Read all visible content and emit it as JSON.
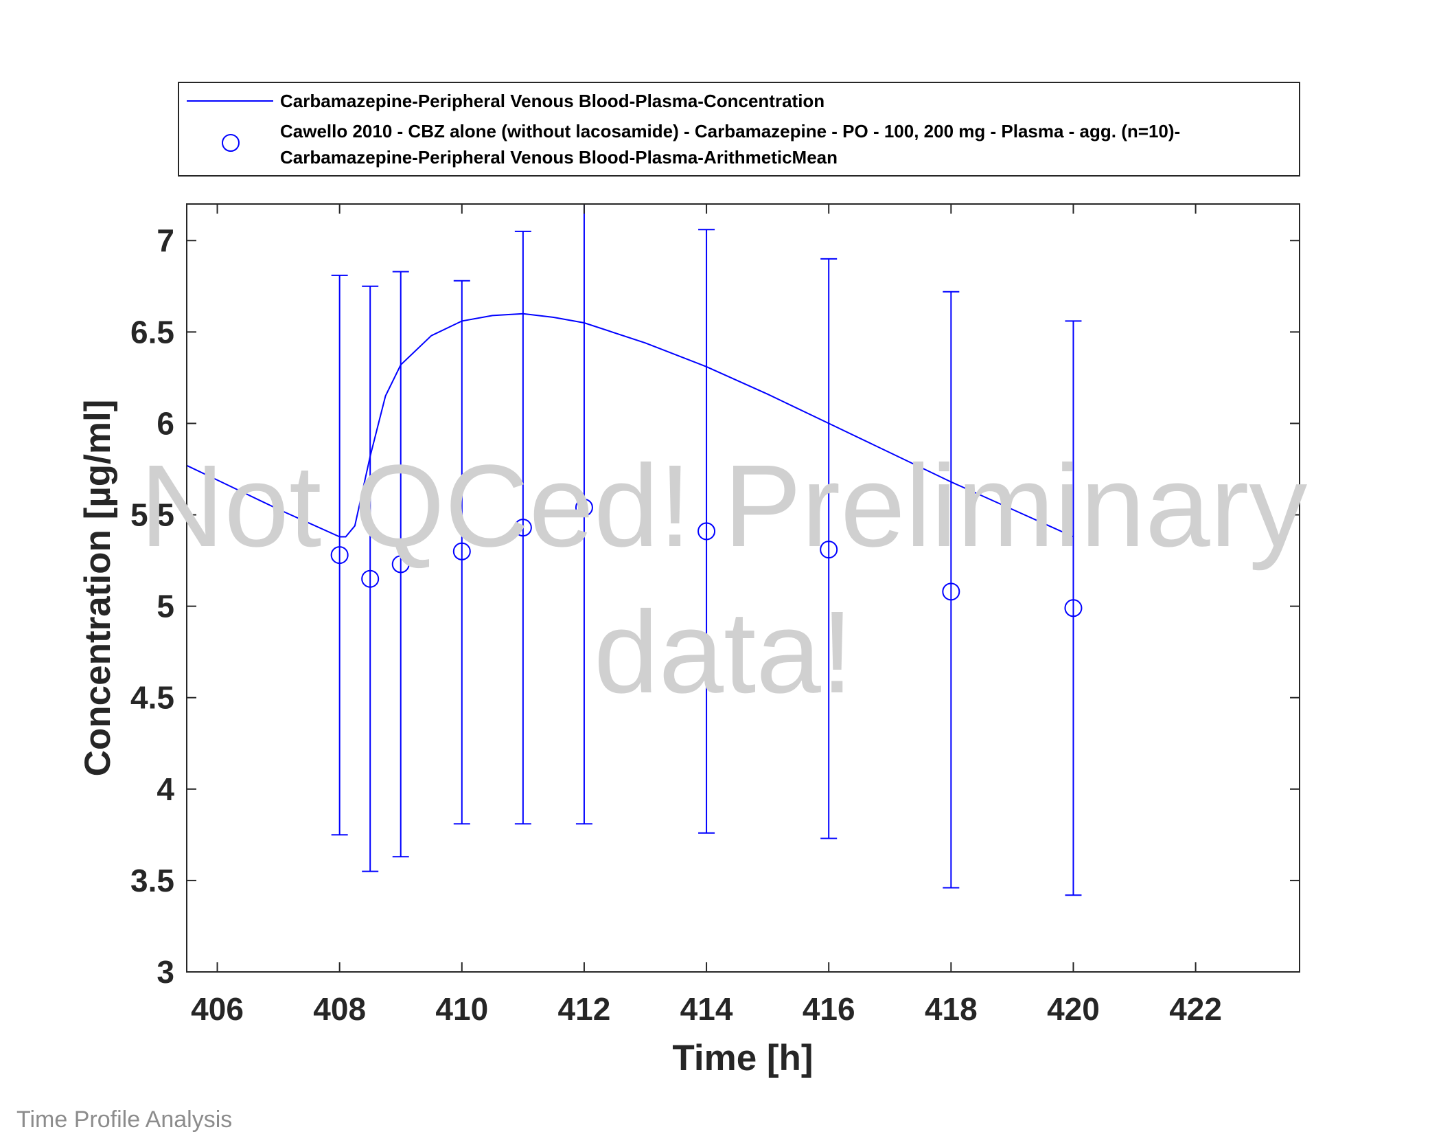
{
  "chart_data": {
    "type": "line",
    "xlabel": "Time [h]",
    "ylabel": "Concentration [µg/ml]",
    "xlim": [
      405.5,
      423.7
    ],
    "ylim": [
      3,
      7.2
    ],
    "xticks": [
      406,
      408,
      410,
      412,
      414,
      416,
      418,
      420,
      422
    ],
    "yticks": [
      3,
      3.5,
      4,
      4.5,
      5,
      5.5,
      6,
      6.5,
      7
    ],
    "grid": false,
    "legend_position": "above plot",
    "series": [
      {
        "name": "Carbamazepine-Peripheral Venous Blood-Plasma-Concentration",
        "kind": "line",
        "color": "#0000ff",
        "x": [
          405.5,
          406,
          407,
          408,
          408.1,
          408.25,
          408.5,
          408.75,
          409,
          409.5,
          410,
          410.5,
          411,
          411.5,
          412,
          413,
          414,
          415,
          416,
          417,
          418,
          419,
          420
        ],
        "y": [
          5.77,
          5.69,
          5.53,
          5.38,
          5.38,
          5.44,
          5.82,
          6.15,
          6.32,
          6.48,
          6.56,
          6.59,
          6.6,
          6.58,
          6.55,
          6.44,
          6.31,
          6.16,
          6.0,
          5.84,
          5.68,
          5.53,
          5.38
        ]
      },
      {
        "name": "Cawello 2010 - CBZ alone (without lacosamide) - Carbamazepine - PO - 100, 200 mg - Plasma - agg. (n=10)-",
        "name_line2": "Carbamazepine-Peripheral Venous Blood-Plasma-ArithmeticMean",
        "kind": "scatter-errorbar",
        "marker": "circle",
        "color": "#0000ff",
        "x": [
          408,
          408.5,
          409,
          410,
          411,
          412,
          414,
          416,
          418,
          420
        ],
        "y": [
          5.28,
          5.15,
          5.23,
          5.3,
          5.43,
          5.54,
          5.41,
          5.31,
          5.08,
          4.99
        ],
        "err_low": [
          3.75,
          3.55,
          3.63,
          3.81,
          3.81,
          3.81,
          3.76,
          3.73,
          3.46,
          3.42
        ],
        "err_high": [
          6.81,
          6.75,
          6.83,
          6.78,
          7.05,
          7.2,
          7.06,
          6.9,
          6.72,
          6.56
        ]
      }
    ]
  },
  "watermark": {
    "line1": "Not QCed! Preliminary",
    "line2": "data!"
  },
  "footer": "Time Profile Analysis"
}
